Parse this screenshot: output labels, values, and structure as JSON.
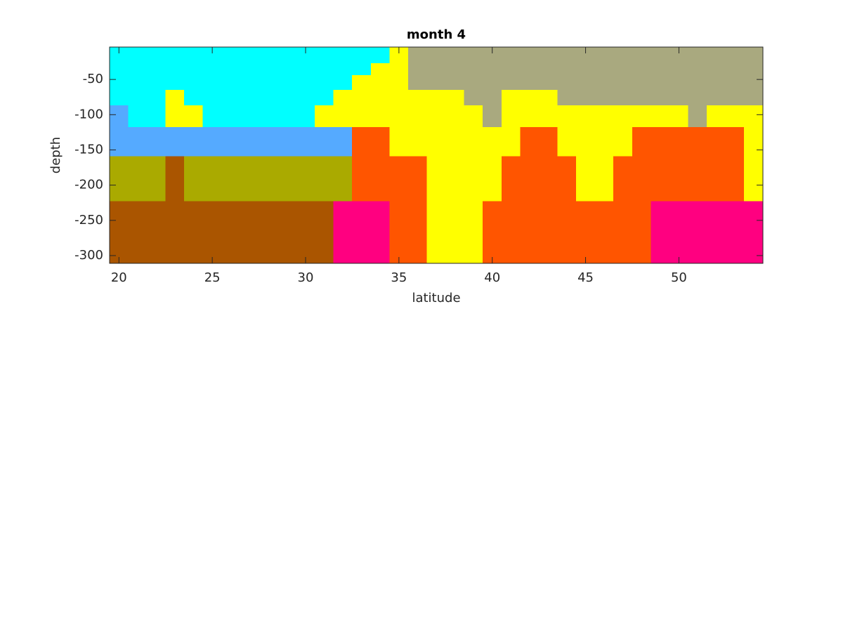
{
  "chart_data": {
    "type": "heatmap",
    "title": "month 4",
    "x_label": "latitude",
    "y_label": "depth",
    "x": [
      20,
      21,
      22,
      23,
      24,
      25,
      26,
      27,
      28,
      29,
      30,
      31,
      32,
      33,
      34,
      35,
      36,
      37,
      38,
      39,
      40,
      41,
      42,
      43,
      44,
      45,
      46,
      47,
      48,
      49,
      50,
      51,
      52,
      53,
      54
    ],
    "y_edges": [
      -4,
      -27,
      -44,
      -65,
      -87,
      -118,
      -159,
      -223,
      -311
    ],
    "colors": [
      "#00ffff",
      "#ffff00",
      "#a9a97f",
      "#55aaff",
      "#aaaa00",
      "#aa5500",
      "#ff5500",
      "#ff0080"
    ],
    "values": [
      [
        0,
        0,
        0,
        0,
        0,
        0,
        0,
        0,
        0,
        0,
        0,
        0,
        0,
        0,
        0,
        1,
        2,
        2,
        2,
        2,
        2,
        2,
        2,
        2,
        2,
        2,
        2,
        2,
        2,
        2,
        2,
        2,
        2,
        2,
        2
      ],
      [
        0,
        0,
        0,
        0,
        0,
        0,
        0,
        0,
        0,
        0,
        0,
        0,
        0,
        0,
        1,
        1,
        2,
        2,
        2,
        2,
        2,
        2,
        2,
        2,
        2,
        2,
        2,
        2,
        2,
        2,
        2,
        2,
        2,
        2,
        2
      ],
      [
        0,
        0,
        0,
        0,
        0,
        0,
        0,
        0,
        0,
        0,
        0,
        0,
        0,
        1,
        1,
        1,
        2,
        2,
        2,
        2,
        2,
        2,
        2,
        2,
        2,
        2,
        2,
        2,
        2,
        2,
        2,
        2,
        2,
        2,
        2
      ],
      [
        0,
        0,
        0,
        1,
        0,
        0,
        0,
        0,
        0,
        0,
        0,
        0,
        1,
        1,
        1,
        1,
        1,
        1,
        1,
        2,
        2,
        1,
        1,
        1,
        2,
        2,
        2,
        2,
        2,
        2,
        2,
        2,
        2,
        2,
        2
      ],
      [
        3,
        0,
        0,
        1,
        1,
        0,
        0,
        0,
        0,
        0,
        0,
        1,
        1,
        1,
        1,
        1,
        1,
        1,
        1,
        1,
        2,
        1,
        1,
        1,
        1,
        1,
        1,
        1,
        1,
        1,
        1,
        2,
        1,
        1,
        1
      ],
      [
        3,
        3,
        3,
        3,
        3,
        3,
        3,
        3,
        3,
        3,
        3,
        3,
        3,
        6,
        6,
        1,
        1,
        1,
        1,
        1,
        1,
        1,
        6,
        6,
        1,
        1,
        1,
        1,
        6,
        6,
        6,
        6,
        6,
        6,
        1
      ],
      [
        4,
        4,
        4,
        5,
        4,
        4,
        4,
        4,
        4,
        4,
        4,
        4,
        4,
        6,
        6,
        6,
        6,
        1,
        1,
        1,
        1,
        6,
        6,
        6,
        6,
        1,
        1,
        6,
        6,
        6,
        6,
        6,
        6,
        6,
        1
      ],
      [
        5,
        5,
        5,
        5,
        5,
        5,
        5,
        5,
        5,
        5,
        5,
        5,
        7,
        7,
        7,
        6,
        6,
        1,
        1,
        1,
        6,
        6,
        6,
        6,
        6,
        6,
        6,
        6,
        6,
        7,
        7,
        7,
        7,
        7,
        7
      ]
    ],
    "xlim": [
      19.5,
      54.5
    ],
    "ylim": [
      -311,
      -4
    ],
    "xticks": [
      20,
      25,
      30,
      35,
      40,
      45,
      50
    ],
    "yticks": [
      -300,
      -250,
      -200,
      -150,
      -100,
      -50
    ]
  }
}
